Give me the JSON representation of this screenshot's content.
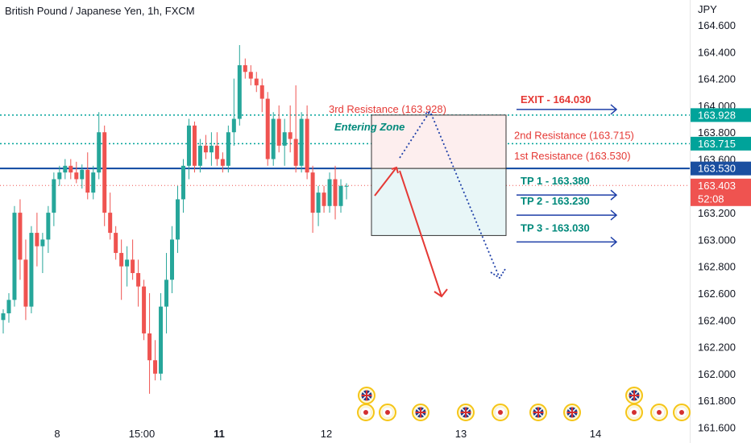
{
  "title": "British Pound / Japanese Yen, 1h, FXCM",
  "currency": "JPY",
  "colors": {
    "up": "#26a69a",
    "down": "#ef5350",
    "resistance": "#e53935",
    "support_line": "#0d47a1",
    "dotted": "#00a39a",
    "blue_arrow": "#1e3fa8",
    "tp_text": "#00897b",
    "entering": "#00897b"
  },
  "chart_data": {
    "type": "candlestick",
    "ylim": [
      161.55,
      164.68
    ],
    "y_ticks": [
      "164.600",
      "164.400",
      "164.200",
      "164.000",
      "163.800",
      "163.600",
      "163.400",
      "163.200",
      "163.000",
      "162.800",
      "162.600",
      "162.400",
      "162.200",
      "162.000",
      "161.800",
      "161.600"
    ],
    "x_ticks": [
      {
        "label": "8",
        "bold": false
      },
      {
        "label": "15:00",
        "bold": false
      },
      {
        "label": "11",
        "bold": true
      },
      {
        "label": "12",
        "bold": false
      },
      {
        "label": "13",
        "bold": false
      },
      {
        "label": "14",
        "bold": false
      }
    ],
    "candles": [
      [
        162.4,
        162.48,
        162.3,
        162.45
      ],
      [
        162.45,
        162.6,
        162.38,
        162.55
      ],
      [
        162.55,
        163.25,
        162.5,
        163.2
      ],
      [
        163.2,
        163.3,
        162.7,
        162.85
      ],
      [
        162.85,
        163.0,
        162.4,
        162.5
      ],
      [
        162.5,
        163.1,
        162.45,
        163.05
      ],
      [
        163.05,
        163.2,
        162.8,
        162.95
      ],
      [
        162.95,
        163.05,
        162.75,
        163.0
      ],
      [
        163.0,
        163.25,
        162.9,
        163.2
      ],
      [
        163.2,
        163.5,
        163.1,
        163.45
      ],
      [
        163.45,
        163.55,
        163.4,
        163.5
      ],
      [
        163.5,
        163.6,
        163.45,
        163.55
      ],
      [
        163.55,
        163.6,
        163.45,
        163.5
      ],
      [
        163.5,
        163.58,
        163.42,
        163.45
      ],
      [
        163.45,
        163.56,
        163.38,
        163.52
      ],
      [
        163.52,
        163.65,
        163.3,
        163.35
      ],
      [
        163.35,
        163.55,
        163.3,
        163.5
      ],
      [
        163.5,
        163.95,
        163.45,
        163.8
      ],
      [
        163.8,
        163.85,
        163.1,
        163.2
      ],
      [
        163.2,
        163.35,
        163.0,
        163.05
      ],
      [
        163.05,
        163.1,
        162.85,
        162.9
      ],
      [
        162.9,
        163.0,
        162.55,
        162.8
      ],
      [
        162.8,
        162.95,
        162.65,
        162.85
      ],
      [
        162.85,
        163.0,
        162.7,
        162.75
      ],
      [
        162.75,
        162.85,
        162.5,
        162.65
      ],
      [
        162.65,
        162.7,
        162.25,
        162.3
      ],
      [
        162.3,
        162.6,
        161.85,
        162.1
      ],
      [
        162.1,
        162.25,
        161.95,
        162.0
      ],
      [
        162.0,
        162.6,
        161.95,
        162.5
      ],
      [
        162.5,
        162.9,
        162.3,
        162.7
      ],
      [
        162.7,
        163.1,
        162.6,
        163.0
      ],
      [
        163.0,
        163.4,
        162.9,
        163.3
      ],
      [
        163.3,
        163.6,
        163.2,
        163.55
      ],
      [
        163.55,
        163.9,
        163.45,
        163.85
      ],
      [
        163.85,
        163.88,
        163.5,
        163.55
      ],
      [
        163.55,
        163.75,
        163.5,
        163.7
      ],
      [
        163.7,
        163.78,
        163.6,
        163.65
      ],
      [
        163.65,
        163.8,
        163.55,
        163.7
      ],
      [
        163.7,
        163.8,
        163.55,
        163.6
      ],
      [
        163.6,
        163.65,
        163.5,
        163.55
      ],
      [
        163.55,
        163.85,
        163.5,
        163.8
      ],
      [
        163.8,
        164.2,
        163.7,
        163.9
      ],
      [
        163.9,
        164.45,
        163.85,
        164.3
      ],
      [
        164.3,
        164.35,
        164.2,
        164.25
      ],
      [
        164.25,
        164.3,
        164.15,
        164.2
      ],
      [
        164.2,
        164.25,
        164.1,
        164.15
      ],
      [
        164.15,
        164.2,
        163.95,
        164.05
      ],
      [
        164.05,
        164.1,
        163.55,
        163.6
      ],
      [
        163.6,
        163.95,
        163.55,
        163.9
      ],
      [
        163.9,
        164.0,
        163.65,
        163.7
      ],
      [
        163.7,
        163.9,
        163.55,
        163.8
      ],
      [
        163.8,
        164.0,
        163.65,
        163.75
      ],
      [
        163.75,
        164.15,
        163.5,
        163.55
      ],
      [
        163.55,
        163.95,
        163.5,
        163.9
      ],
      [
        163.9,
        164.0,
        163.45,
        163.5
      ],
      [
        163.5,
        163.55,
        163.05,
        163.2
      ],
      [
        163.2,
        163.4,
        163.1,
        163.35
      ],
      [
        163.35,
        163.4,
        163.2,
        163.25
      ],
      [
        163.25,
        163.5,
        163.2,
        163.45
      ],
      [
        163.45,
        163.55,
        163.15,
        163.25
      ],
      [
        163.25,
        163.45,
        163.2,
        163.4
      ],
      [
        163.4,
        163.42,
        163.3,
        163.4
      ]
    ],
    "levels": [
      {
        "value": 163.928,
        "label": "3rd Resistance (163.928)",
        "style": "dotted",
        "badge": "163.928"
      },
      {
        "value": 163.715,
        "label": "2nd Resistance (163.715)",
        "style": "dotted",
        "badge": "163.715"
      },
      {
        "value": 163.53,
        "label": "1st Resistance (163.530)",
        "style": "solid",
        "badge": "163.530"
      },
      {
        "value": 163.403,
        "label": "",
        "style": "current",
        "badge": "163.403",
        "sub": "52:08"
      }
    ],
    "targets": [
      {
        "label": "EXIT - 164.030",
        "value": 164.03,
        "kind": "exit"
      },
      {
        "label": "TP 1 - 163.380",
        "value": 163.38,
        "kind": "tp"
      },
      {
        "label": "TP 2 - 163.230",
        "value": 163.23,
        "kind": "tp"
      },
      {
        "label": "TP 3 - 163.030",
        "value": 163.03,
        "kind": "tp"
      }
    ],
    "zone": {
      "label": "Entering Zone",
      "top": 163.928,
      "mid": 163.53,
      "bottom": 163.03
    },
    "events": [
      {
        "type": "uk",
        "row": 1
      },
      {
        "type": "jp",
        "row": 2
      },
      {
        "type": "jp",
        "row": 2
      },
      {
        "type": "uk",
        "row": 2
      },
      {
        "type": "uk",
        "row": 2
      },
      {
        "type": "jp",
        "row": 2
      },
      {
        "type": "uk",
        "row": 2
      },
      {
        "type": "uk",
        "row": 2
      },
      {
        "type": "uk",
        "row": 1
      },
      {
        "type": "jp",
        "row": 2
      },
      {
        "type": "jp",
        "row": 2
      },
      {
        "type": "jp",
        "row": 2
      }
    ]
  }
}
